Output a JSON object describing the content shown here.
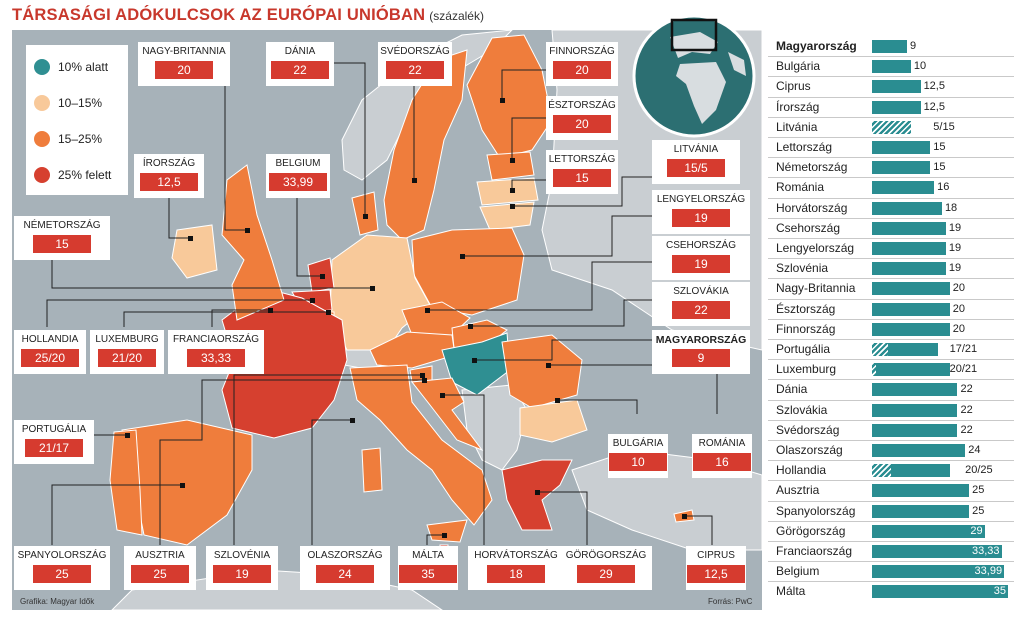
{
  "header": {
    "title": "TÁRSASÁGI ADÓKULCSOK AZ EURÓPAI UNIÓBAN",
    "subtitle": "(százalék)"
  },
  "legend": [
    {
      "label": "10% alatt",
      "color": "#2f8f92"
    },
    {
      "label": "10–15%",
      "color": "#f8c99a"
    },
    {
      "label": "15–25%",
      "color": "#ef7d3c"
    },
    {
      "label": "25% felett",
      "color": "#d6402f"
    }
  ],
  "colors": {
    "sea": "#a7b2b9",
    "nonEU": "#c9ced2",
    "badge": "#d63b2f",
    "bar": "#2a8d91"
  },
  "map_labels": [
    {
      "name": "NAGY-BRITANNIA",
      "value": "20",
      "bold": false
    },
    {
      "name": "DÁNIA",
      "value": "22",
      "bold": false
    },
    {
      "name": "SVÉDORSZÁG",
      "value": "22",
      "bold": false
    },
    {
      "name": "FINNORSZÁG",
      "value": "20",
      "bold": false
    },
    {
      "name": "ÉSZTORSZÁG",
      "value": "20",
      "bold": false
    },
    {
      "name": "LETTORSZÁG",
      "value": "15",
      "bold": false
    },
    {
      "name": "LITVÁNIA",
      "value": "15/5",
      "bold": false
    },
    {
      "name": "ÍRORSZÁG",
      "value": "12,5",
      "bold": false
    },
    {
      "name": "BELGIUM",
      "value": "33,99",
      "bold": false
    },
    {
      "name": "NÉMETORSZÁG",
      "value": "15",
      "bold": false
    },
    {
      "name": "LENGYELORSZÁG",
      "value": "19",
      "bold": false
    },
    {
      "name": "CSEHORSZÁG",
      "value": "19",
      "bold": false
    },
    {
      "name": "SZLOVÁKIA",
      "value": "22",
      "bold": false
    },
    {
      "name": "HOLLANDIA",
      "value": "25/20",
      "bold": false
    },
    {
      "name": "LUXEMBURG",
      "value": "21/20",
      "bold": false
    },
    {
      "name": "FRANCIAORSZÁG",
      "value": "33,33",
      "bold": false
    },
    {
      "name": "MAGYARORSZÁG",
      "value": "9",
      "bold": true
    },
    {
      "name": "PORTUGÁLIA",
      "value": "21/17",
      "bold": false
    },
    {
      "name": "BULGÁRIA",
      "value": "10",
      "bold": false
    },
    {
      "name": "ROMÁNIA",
      "value": "16",
      "bold": false
    },
    {
      "name": "SPANYOLORSZÁG",
      "value": "25",
      "bold": false
    },
    {
      "name": "AUSZTRIA",
      "value": "25",
      "bold": false
    },
    {
      "name": "SZLOVÉNIA",
      "value": "19",
      "bold": false
    },
    {
      "name": "OLASZORSZÁG",
      "value": "24",
      "bold": false
    },
    {
      "name": "MÁLTA",
      "value": "35",
      "bold": false
    },
    {
      "name": "HORVÁTORSZÁG",
      "value": "18",
      "bold": false
    },
    {
      "name": "GÖRÖGORSZÁG",
      "value": "29",
      "bold": false
    },
    {
      "name": "CIPRUS",
      "value": "12,5",
      "bold": false
    }
  ],
  "footer": {
    "credit": "Grafika: Magyar Idők",
    "source": "Forrás: PwC"
  },
  "chart_data": {
    "type": "bar",
    "orientation": "horizontal",
    "xlim": [
      0,
      35
    ],
    "bars": [
      {
        "country": "Magyarország",
        "label": "9",
        "value": 9,
        "highlight": true
      },
      {
        "country": "Bulgária",
        "label": "10",
        "value": 10
      },
      {
        "country": "Ciprus",
        "label": "12,5",
        "value": 12.5
      },
      {
        "country": "Írország",
        "label": "12,5",
        "value": 12.5
      },
      {
        "country": "Litvánia",
        "label": "5/15",
        "value": 15,
        "low": 5
      },
      {
        "country": "Lettország",
        "label": "15",
        "value": 15
      },
      {
        "country": "Németország",
        "label": "15",
        "value": 15
      },
      {
        "country": "Románia",
        "label": "16",
        "value": 16
      },
      {
        "country": "Horvátország",
        "label": "18",
        "value": 18
      },
      {
        "country": "Csehország",
        "label": "19",
        "value": 19
      },
      {
        "country": "Lengyelország",
        "label": "19",
        "value": 19
      },
      {
        "country": "Szlovénia",
        "label": "19",
        "value": 19
      },
      {
        "country": "Nagy-Britannia",
        "label": "20",
        "value": 20
      },
      {
        "country": "Észtország",
        "label": "20",
        "value": 20
      },
      {
        "country": "Finnország",
        "label": "20",
        "value": 20
      },
      {
        "country": "Portugália",
        "label": "17/21",
        "value": 21,
        "low": 17
      },
      {
        "country": "Luxemburg",
        "label": "20/21",
        "value": 21,
        "low": 20
      },
      {
        "country": "Dánia",
        "label": "22",
        "value": 22
      },
      {
        "country": "Szlovákia",
        "label": "22",
        "value": 22
      },
      {
        "country": "Svédország",
        "label": "22",
        "value": 22
      },
      {
        "country": "Olaszország",
        "label": "24",
        "value": 24
      },
      {
        "country": "Hollandia",
        "label": "20/25",
        "value": 25,
        "low": 20
      },
      {
        "country": "Ausztria",
        "label": "25",
        "value": 25
      },
      {
        "country": "Spanyolország",
        "label": "25",
        "value": 25
      },
      {
        "country": "Görögország",
        "label": "29",
        "value": 29
      },
      {
        "country": "Franciaország",
        "label": "33,33",
        "value": 33.33
      },
      {
        "country": "Belgium",
        "label": "33,99",
        "value": 33.99
      },
      {
        "country": "Málta",
        "label": "35",
        "value": 35
      }
    ]
  }
}
